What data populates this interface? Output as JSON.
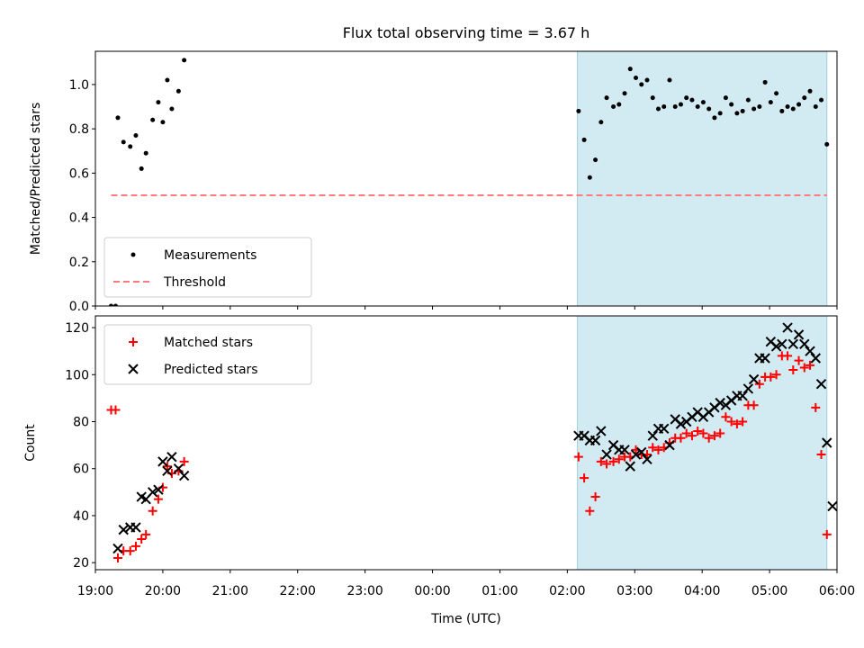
{
  "figure": {
    "title": "Flux total observing time = 3.67 h",
    "shade_color": "#add8e6"
  },
  "chart_data": [
    {
      "type": "scatter",
      "title": "Flux total observing time = 3.67 h",
      "xlabel": "",
      "ylabel": "Matched/Predicted stars",
      "xlim": [
        "19:00",
        "06:00"
      ],
      "ylim": [
        0,
        1.15
      ],
      "yticks": [
        0.0,
        0.2,
        0.4,
        0.6,
        0.8,
        1.0
      ],
      "ytick_labels": [
        "0.0",
        "0.2",
        "0.4",
        "0.6",
        "0.8",
        "1.0"
      ],
      "shaded_span": [
        "02:09",
        "05:51"
      ],
      "legend": {
        "placement": "lower-left",
        "entries": [
          "Measurements",
          "Threshold"
        ]
      },
      "series": [
        {
          "name": "Measurements",
          "marker": "dot",
          "color": "#000000",
          "points": [
            [
              "19:14",
              0.0
            ],
            [
              "19:18",
              0.0
            ],
            [
              "19:20",
              0.85
            ],
            [
              "19:25",
              0.74
            ],
            [
              "19:31",
              0.72
            ],
            [
              "19:36",
              0.77
            ],
            [
              "19:41",
              0.62
            ],
            [
              "19:45",
              0.69
            ],
            [
              "19:51",
              0.84
            ],
            [
              "19:56",
              0.92
            ],
            [
              "20:00",
              0.83
            ],
            [
              "20:04",
              1.02
            ],
            [
              "20:08",
              0.89
            ],
            [
              "20:14",
              0.97
            ],
            [
              "20:19",
              1.11
            ],
            [
              "02:10",
              0.88
            ],
            [
              "02:15",
              0.75
            ],
            [
              "02:20",
              0.58
            ],
            [
              "02:25",
              0.66
            ],
            [
              "02:30",
              0.83
            ],
            [
              "02:35",
              0.94
            ],
            [
              "02:41",
              0.9
            ],
            [
              "02:46",
              0.91
            ],
            [
              "02:51",
              0.96
            ],
            [
              "02:56",
              1.07
            ],
            [
              "03:01",
              1.03
            ],
            [
              "03:06",
              1.0
            ],
            [
              "03:11",
              1.02
            ],
            [
              "03:16",
              0.94
            ],
            [
              "03:21",
              0.89
            ],
            [
              "03:26",
              0.9
            ],
            [
              "03:31",
              1.02
            ],
            [
              "03:36",
              0.9
            ],
            [
              "03:41",
              0.91
            ],
            [
              "03:46",
              0.94
            ],
            [
              "03:51",
              0.93
            ],
            [
              "03:56",
              0.9
            ],
            [
              "04:01",
              0.92
            ],
            [
              "04:06",
              0.89
            ],
            [
              "04:11",
              0.85
            ],
            [
              "04:16",
              0.87
            ],
            [
              "04:21",
              0.94
            ],
            [
              "04:26",
              0.91
            ],
            [
              "04:31",
              0.87
            ],
            [
              "04:36",
              0.88
            ],
            [
              "04:41",
              0.93
            ],
            [
              "04:46",
              0.89
            ],
            [
              "04:51",
              0.9
            ],
            [
              "04:56",
              1.01
            ],
            [
              "05:01",
              0.92
            ],
            [
              "05:06",
              0.96
            ],
            [
              "05:11",
              0.88
            ],
            [
              "05:16",
              0.9
            ],
            [
              "05:21",
              0.89
            ],
            [
              "05:26",
              0.91
            ],
            [
              "05:31",
              0.94
            ],
            [
              "05:36",
              0.97
            ],
            [
              "05:41",
              0.9
            ],
            [
              "05:46",
              0.93
            ],
            [
              "05:51",
              0.73
            ]
          ]
        },
        {
          "name": "Threshold",
          "type": "line",
          "style": "dashed",
          "color": "#ff7b7b",
          "points": [
            [
              "19:14",
              0.5
            ],
            [
              "05:51",
              0.5
            ]
          ]
        }
      ]
    },
    {
      "type": "scatter",
      "title": "",
      "xlabel": "Time (UTC)",
      "ylabel": "Count",
      "xlim": [
        "19:00",
        "06:00"
      ],
      "ylim": [
        17,
        125
      ],
      "xticks": [
        "19:00",
        "20:00",
        "21:00",
        "22:00",
        "23:00",
        "00:00",
        "01:00",
        "02:00",
        "03:00",
        "04:00",
        "05:00",
        "06:00"
      ],
      "yticks": [
        20,
        40,
        60,
        80,
        100,
        120
      ],
      "ytick_labels": [
        "20",
        "40",
        "60",
        "80",
        "100",
        "120"
      ],
      "shaded_span": [
        "02:09",
        "05:51"
      ],
      "legend": {
        "placement": "upper-left",
        "entries": [
          "Matched stars",
          "Predicted stars"
        ]
      },
      "series": [
        {
          "name": "Matched stars",
          "marker": "plus",
          "color": "#ff0000",
          "points": [
            [
              "19:14",
              85
            ],
            [
              "19:18",
              85
            ],
            [
              "19:20",
              22
            ],
            [
              "19:25",
              25
            ],
            [
              "19:31",
              25
            ],
            [
              "19:36",
              27
            ],
            [
              "19:41",
              30
            ],
            [
              "19:45",
              32
            ],
            [
              "19:51",
              42
            ],
            [
              "19:56",
              47
            ],
            [
              "20:00",
              52
            ],
            [
              "20:04",
              61
            ],
            [
              "20:08",
              58
            ],
            [
              "20:14",
              59
            ],
            [
              "20:19",
              63
            ],
            [
              "02:10",
              65
            ],
            [
              "02:15",
              56
            ],
            [
              "02:20",
              42
            ],
            [
              "02:25",
              48
            ],
            [
              "02:30",
              63
            ],
            [
              "02:35",
              62
            ],
            [
              "02:41",
              63
            ],
            [
              "02:46",
              64
            ],
            [
              "02:51",
              65
            ],
            [
              "02:56",
              65
            ],
            [
              "03:01",
              68
            ],
            [
              "03:06",
              66
            ],
            [
              "03:11",
              66
            ],
            [
              "03:16",
              69
            ],
            [
              "03:21",
              68
            ],
            [
              "03:26",
              69
            ],
            [
              "03:31",
              71
            ],
            [
              "03:36",
              73
            ],
            [
              "03:41",
              73
            ],
            [
              "03:46",
              75
            ],
            [
              "03:51",
              74
            ],
            [
              "03:56",
              76
            ],
            [
              "04:01",
              75
            ],
            [
              "04:06",
              73
            ],
            [
              "04:11",
              74
            ],
            [
              "04:16",
              75
            ],
            [
              "04:21",
              82
            ],
            [
              "04:26",
              80
            ],
            [
              "04:31",
              79
            ],
            [
              "04:36",
              80
            ],
            [
              "04:41",
              87
            ],
            [
              "04:46",
              87
            ],
            [
              "04:51",
              96
            ],
            [
              "04:56",
              99
            ],
            [
              "05:01",
              99
            ],
            [
              "05:06",
              100
            ],
            [
              "05:11",
              108
            ],
            [
              "05:16",
              108
            ],
            [
              "05:21",
              102
            ],
            [
              "05:26",
              106
            ],
            [
              "05:31",
              103
            ],
            [
              "05:36",
              104
            ],
            [
              "05:41",
              86
            ],
            [
              "05:46",
              66
            ],
            [
              "05:51",
              32
            ]
          ]
        },
        {
          "name": "Predicted stars",
          "marker": "x",
          "color": "#000000",
          "points": [
            [
              "19:20",
              26
            ],
            [
              "19:25",
              34
            ],
            [
              "19:31",
              35
            ],
            [
              "19:36",
              35
            ],
            [
              "19:41",
              48
            ],
            [
              "19:45",
              47
            ],
            [
              "19:51",
              50
            ],
            [
              "19:56",
              51
            ],
            [
              "20:00",
              63
            ],
            [
              "20:04",
              59
            ],
            [
              "20:08",
              65
            ],
            [
              "20:14",
              60
            ],
            [
              "20:19",
              57
            ],
            [
              "02:10",
              74
            ],
            [
              "02:15",
              74
            ],
            [
              "02:20",
              72
            ],
            [
              "02:25",
              72
            ],
            [
              "02:30",
              76
            ],
            [
              "02:35",
              66
            ],
            [
              "02:41",
              70
            ],
            [
              "02:46",
              68
            ],
            [
              "02:51",
              68
            ],
            [
              "02:56",
              61
            ],
            [
              "03:01",
              66
            ],
            [
              "03:06",
              67
            ],
            [
              "03:11",
              64
            ],
            [
              "03:16",
              74
            ],
            [
              "03:21",
              77
            ],
            [
              "03:26",
              77
            ],
            [
              "03:31",
              70
            ],
            [
              "03:36",
              81
            ],
            [
              "03:41",
              79
            ],
            [
              "03:46",
              80
            ],
            [
              "03:51",
              82
            ],
            [
              "03:56",
              84
            ],
            [
              "04:01",
              82
            ],
            [
              "04:06",
              84
            ],
            [
              "04:11",
              86
            ],
            [
              "04:16",
              88
            ],
            [
              "04:21",
              87
            ],
            [
              "04:26",
              89
            ],
            [
              "04:31",
              91
            ],
            [
              "04:36",
              91
            ],
            [
              "04:41",
              94
            ],
            [
              "04:46",
              98
            ],
            [
              "04:51",
              107
            ],
            [
              "04:56",
              107
            ],
            [
              "05:01",
              114
            ],
            [
              "05:06",
              112
            ],
            [
              "05:11",
              113
            ],
            [
              "05:16",
              120
            ],
            [
              "05:21",
              113
            ],
            [
              "05:26",
              117
            ],
            [
              "05:31",
              113
            ],
            [
              "05:36",
              110
            ],
            [
              "05:41",
              107
            ],
            [
              "05:46",
              96
            ],
            [
              "05:51",
              71
            ],
            [
              "05:56",
              44
            ]
          ]
        }
      ]
    }
  ]
}
